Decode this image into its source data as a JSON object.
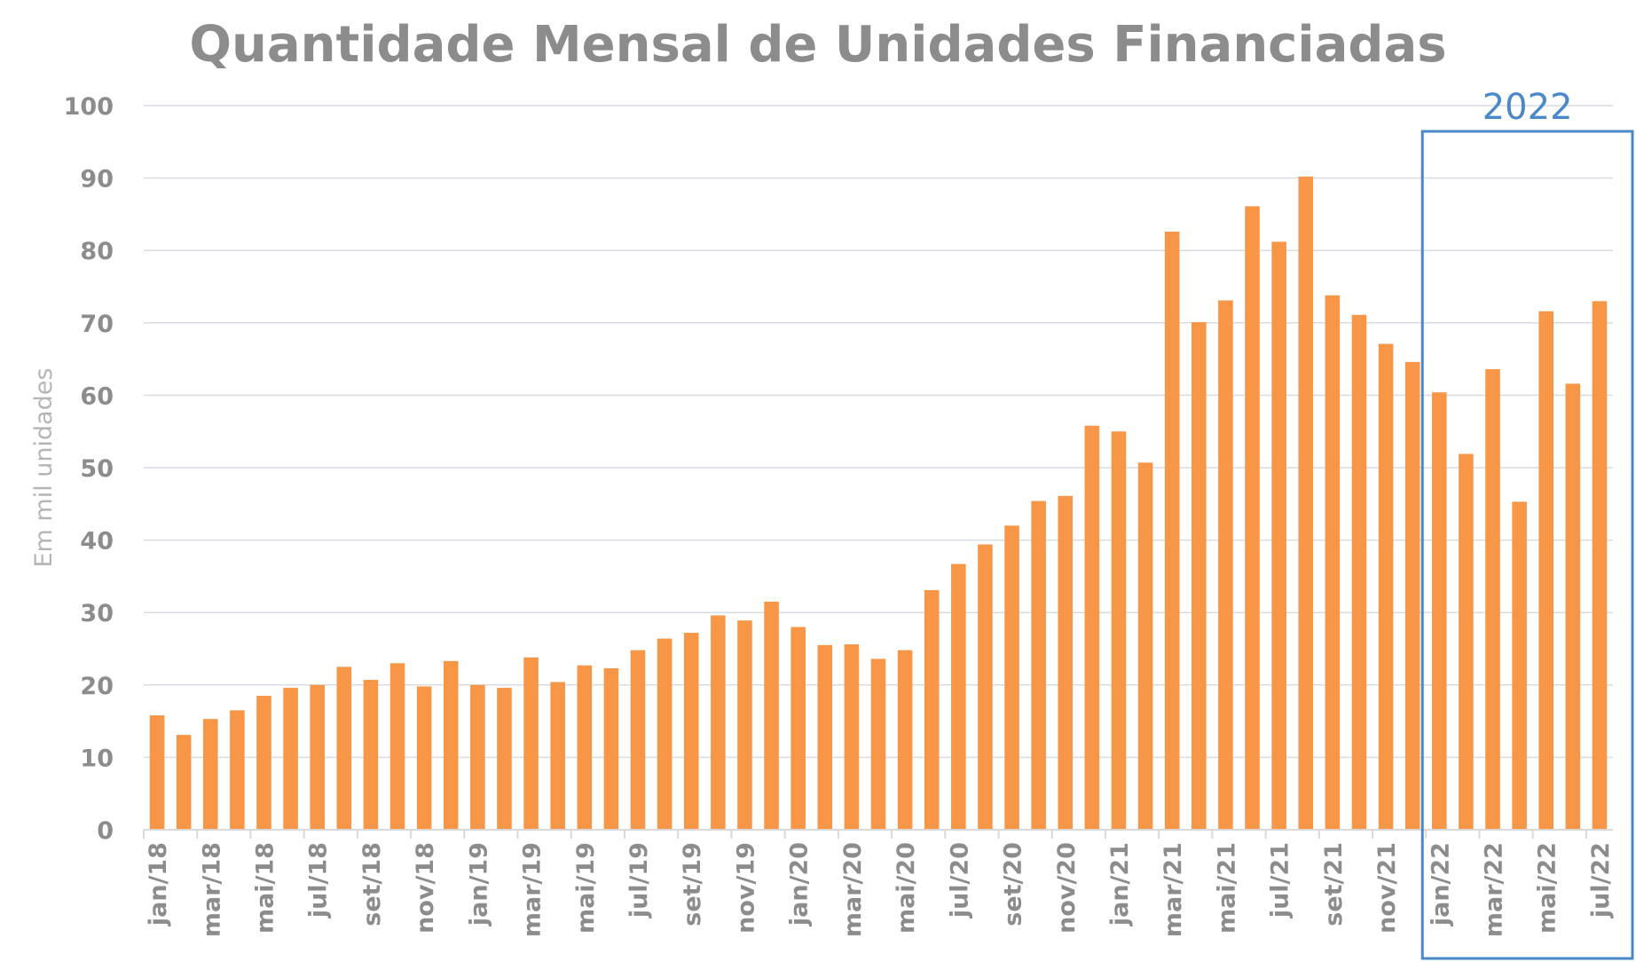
{
  "chart_data": {
    "type": "bar",
    "title": "Quantidade Mensal de Unidades Financiadas",
    "ylabel": "Em mil unidades",
    "xlabel": "",
    "ylim": [
      0,
      100
    ],
    "yticks": [
      "0",
      "10",
      "20",
      "30",
      "40",
      "50",
      "60",
      "70",
      "80",
      "90",
      "100"
    ],
    "grid": true,
    "bar_color": "#f79646",
    "categories": [
      "jan/18",
      "fev/18",
      "mar/18",
      "abr/18",
      "mai/18",
      "jun/18",
      "jul/18",
      "ago/18",
      "set/18",
      "out/18",
      "nov/18",
      "dez/18",
      "jan/19",
      "fev/19",
      "mar/19",
      "abr/19",
      "mai/19",
      "jun/19",
      "jul/19",
      "ago/19",
      "set/19",
      "out/19",
      "nov/19",
      "dez/19",
      "jan/20",
      "fev/20",
      "mar/20",
      "abr/20",
      "mai/20",
      "jun/20",
      "jul/20",
      "ago/20",
      "set/20",
      "out/20",
      "nov/20",
      "dez/20",
      "jan/21",
      "fev/21",
      "mar/21",
      "abr/21",
      "mai/21",
      "jun/21",
      "jul/21",
      "ago/21",
      "set/21",
      "out/21",
      "nov/21",
      "dez/21",
      "jan/22",
      "fev/22",
      "mar/22",
      "abr/22",
      "mai/22",
      "jun/22",
      "jul/22"
    ],
    "tick_labels_shown": [
      "jan/18",
      "mar/18",
      "mai/18",
      "jul/18",
      "set/18",
      "nov/18",
      "jan/19",
      "mar/19",
      "mai/19",
      "jul/19",
      "set/19",
      "nov/19",
      "jan/20",
      "mar/20",
      "mai/20",
      "jul/20",
      "set/20",
      "nov/20",
      "jan/21",
      "mar/21",
      "mai/21",
      "jul/21",
      "set/21",
      "nov/21",
      "jan/22",
      "mar/22",
      "mai/22",
      "jul/22"
    ],
    "values": [
      15.8,
      13.1,
      15.3,
      16.5,
      18.5,
      19.6,
      20.0,
      22.5,
      20.7,
      23.0,
      19.8,
      23.3,
      20.0,
      19.6,
      23.8,
      20.4,
      22.7,
      22.3,
      24.8,
      26.4,
      27.2,
      29.6,
      28.9,
      31.5,
      28.0,
      25.5,
      25.6,
      23.6,
      24.8,
      33.1,
      36.7,
      39.4,
      42.0,
      45.4,
      46.1,
      55.8,
      55.0,
      50.7,
      82.6,
      70.1,
      73.1,
      86.1,
      81.2,
      90.2,
      73.8,
      71.1,
      67.1,
      64.6,
      60.4,
      51.9,
      63.6,
      45.3,
      71.6,
      61.6,
      73.0
    ],
    "highlight": {
      "label": "2022",
      "from": "jan/22",
      "to": "jul/22",
      "color": "#4a88c7"
    }
  }
}
